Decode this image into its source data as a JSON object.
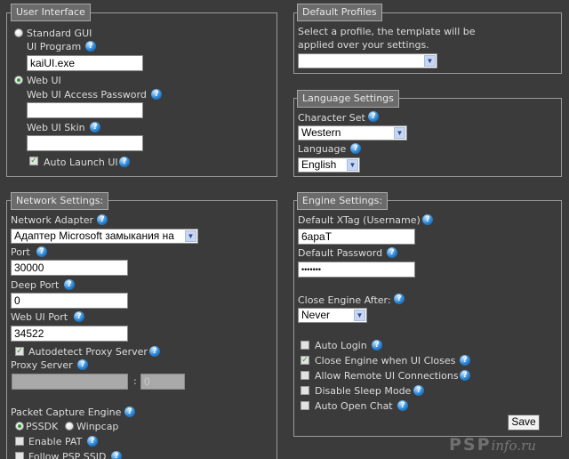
{
  "user_interface": {
    "legend": "User Interface",
    "standard_gui": "Standard GUI",
    "ui_program_label": "UI Program",
    "ui_program_value": "kaiUI.exe",
    "web_ui": "Web UI",
    "web_ui_password_label": "Web UI Access Password",
    "web_ui_password_value": "",
    "web_ui_skin_label": "Web UI Skin",
    "web_ui_skin_value": "",
    "auto_launch_label": "Auto Launch UI",
    "selected": "Web UI",
    "auto_launch_checked": true
  },
  "network": {
    "legend": "Network Settings:",
    "adapter_label": "Network Adapter",
    "adapter_value": "Адаптер Microsoft замыкания на себя",
    "port_label": "Port",
    "port_value": "30000",
    "deep_port_label": "Deep Port",
    "deep_port_value": "0",
    "web_ui_port_label": "Web UI Port",
    "web_ui_port_value": "34522",
    "autodetect_proxy_label": "Autodetect Proxy Server",
    "autodetect_proxy_checked": true,
    "proxy_label": "Proxy Server",
    "proxy_host_value": "",
    "proxy_sep": ":",
    "proxy_port_value": "0",
    "capture_label": "Packet Capture Engine",
    "pssdk": "PSSDK",
    "winpcap": "Winpcap",
    "capture_selected": "PSSDK",
    "enable_pat_label": "Enable PAT",
    "enable_pat_checked": false,
    "follow_ssid_label": "Follow PSP SSID",
    "follow_ssid_checked": false
  },
  "profiles": {
    "legend": "Default Profiles",
    "desc_line1": "Select a profile, the template will be",
    "desc_line2": "applied over your settings.",
    "selected": ""
  },
  "language": {
    "legend": "Language Settings",
    "charset_label": "Character Set",
    "charset_value": "Western",
    "language_label": "Language",
    "language_value": "English"
  },
  "engine": {
    "legend": "Engine Settings:",
    "xtag_label": "Default XTag (Username)",
    "xtag_value": "6apaT",
    "password_label": "Default Password",
    "password_value": "•••••••",
    "close_after_label": "Close Engine After:",
    "close_after_value": "Never",
    "options": [
      {
        "label": "Auto Login",
        "checked": false
      },
      {
        "label": "Close Engine when UI Closes",
        "checked": true
      },
      {
        "label": "Allow Remote UI Connections",
        "checked": false
      },
      {
        "label": "Disable Sleep Mode",
        "checked": false
      },
      {
        "label": "Auto Open Chat",
        "checked": false
      }
    ],
    "save_label": "Save"
  },
  "icons": {
    "help": "help-question-icon",
    "dropdown": "chevron-down-icon",
    "check": "checkmark-icon"
  },
  "watermark": {
    "main": "PSP",
    "suffix": "info.ru"
  }
}
